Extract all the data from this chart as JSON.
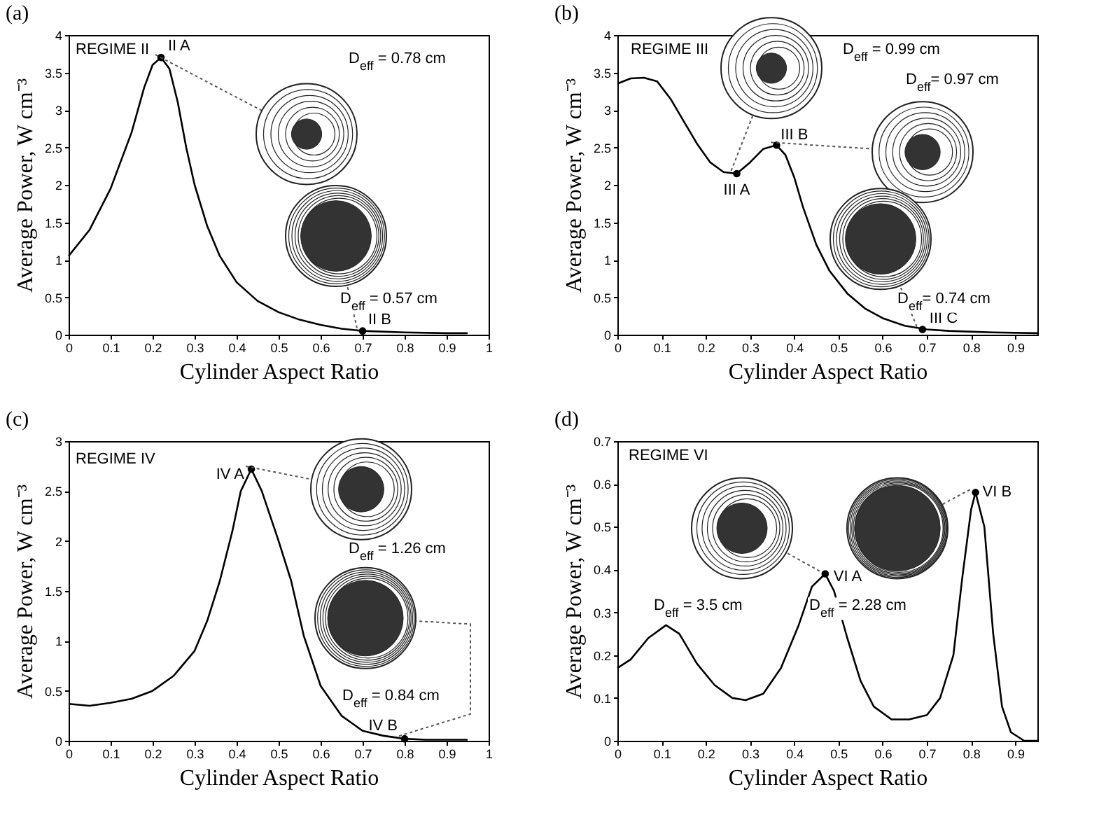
{
  "chart_data": [
    {
      "type": "line",
      "title": "(a)",
      "xlabel": "Cylinder  Aspect  Ratio",
      "ylabel": "Average  Power, W cm⁻³",
      "xlim": [
        0,
        1
      ],
      "xticks": [
        0,
        0.1,
        0.2,
        0.3,
        0.4,
        0.5,
        0.6,
        0.7,
        0.8,
        0.9,
        1
      ],
      "ylim": [
        0,
        4
      ],
      "yticks": [
        0,
        0.5,
        1,
        1.5,
        2,
        2.5,
        3,
        3.5,
        4
      ],
      "series": [
        {
          "color": "#000000",
          "x": [
            0,
            0.05,
            0.1,
            0.15,
            0.18,
            0.2,
            0.22,
            0.24,
            0.26,
            0.28,
            0.3,
            0.33,
            0.36,
            0.4,
            0.45,
            0.5,
            0.55,
            0.6,
            0.65,
            0.7,
            0.8,
            0.9,
            0.95
          ],
          "values": [
            1.05,
            1.4,
            1.95,
            2.7,
            3.3,
            3.6,
            3.7,
            3.55,
            3.1,
            2.5,
            2.0,
            1.45,
            1.05,
            0.7,
            0.45,
            0.3,
            0.2,
            0.13,
            0.08,
            0.05,
            0.03,
            0.02,
            0.02
          ]
        },
        {
          "type": "scatter",
          "marker": "circle",
          "color": "#000000",
          "x": [
            0.22,
            0.7
          ],
          "values": [
            3.7,
            0.05
          ]
        }
      ],
      "annotations": [
        "REGIME II",
        {
          "text": "II A",
          "x": 0.22,
          "y": 3.7
        },
        {
          "text": "II B",
          "x": 0.7,
          "y": 0.05
        },
        "D$_{eff}$ = 0.78 cm",
        "D$_{eff}$ = 0.57 cm"
      ]
    },
    {
      "type": "line",
      "title": "(b)",
      "xlabel": "Cylinder  Aspect  Ratio",
      "ylabel": "Average  Power, W cm⁻³",
      "xlim": [
        0,
        0.95
      ],
      "xticks": [
        0,
        0.1,
        0.2,
        0.3,
        0.4,
        0.5,
        0.6,
        0.7,
        0.8,
        0.9
      ],
      "ylim": [
        0,
        4
      ],
      "yticks": [
        0,
        0.5,
        1,
        1.5,
        2,
        2.5,
        3,
        3.5,
        4
      ],
      "series": [
        {
          "color": "#000000",
          "x": [
            0,
            0.03,
            0.06,
            0.09,
            0.12,
            0.15,
            0.18,
            0.21,
            0.24,
            0.27,
            0.3,
            0.33,
            0.36,
            0.38,
            0.4,
            0.42,
            0.45,
            0.48,
            0.52,
            0.56,
            0.6,
            0.65,
            0.7,
            0.75,
            0.85,
            0.95
          ],
          "values": [
            3.35,
            3.42,
            3.43,
            3.38,
            3.15,
            2.85,
            2.55,
            2.3,
            2.17,
            2.15,
            2.3,
            2.48,
            2.53,
            2.4,
            2.1,
            1.7,
            1.2,
            0.85,
            0.55,
            0.35,
            0.22,
            0.12,
            0.07,
            0.05,
            0.03,
            0.02
          ]
        },
        {
          "type": "scatter",
          "marker": "circle",
          "color": "#000000",
          "x": [
            0.27,
            0.36,
            0.69
          ],
          "values": [
            2.15,
            2.53,
            0.07
          ]
        }
      ],
      "annotations": [
        "REGIME III",
        {
          "text": "III A",
          "x": 0.27,
          "y": 2.15
        },
        {
          "text": "III B",
          "x": 0.36,
          "y": 2.53
        },
        {
          "text": "III C",
          "x": 0.69,
          "y": 0.07
        },
        "D$_{eff}$ = 0.99 cm",
        "D$_{eff}$= 0.97 cm",
        "D$_{eff}$= 0.74 cm"
      ]
    },
    {
      "type": "line",
      "title": "(c)",
      "xlabel": "Cylinder  Aspect  Ratio",
      "ylabel": "Average  Power, W cm⁻³",
      "xlim": [
        0,
        1
      ],
      "xticks": [
        0,
        0.1,
        0.2,
        0.3,
        0.4,
        0.5,
        0.6,
        0.7,
        0.8,
        0.9,
        1
      ],
      "ylim": [
        0,
        3
      ],
      "yticks": [
        0,
        0.5,
        1,
        1.5,
        2,
        2.5,
        3
      ],
      "series": [
        {
          "color": "#000000",
          "x": [
            0,
            0.05,
            0.1,
            0.15,
            0.2,
            0.25,
            0.3,
            0.33,
            0.36,
            0.39,
            0.41,
            0.435,
            0.46,
            0.5,
            0.53,
            0.56,
            0.6,
            0.65,
            0.7,
            0.75,
            0.8,
            0.85,
            0.95
          ],
          "values": [
            0.37,
            0.35,
            0.38,
            0.42,
            0.5,
            0.65,
            0.9,
            1.2,
            1.6,
            2.1,
            2.5,
            2.72,
            2.5,
            2.0,
            1.6,
            1.05,
            0.55,
            0.25,
            0.1,
            0.05,
            0.02,
            0.01,
            0.01
          ]
        },
        {
          "type": "scatter",
          "marker": "circle",
          "color": "#000000",
          "x": [
            0.435,
            0.8
          ],
          "values": [
            2.72,
            0.02
          ]
        }
      ],
      "annotations": [
        "REGIME IV",
        {
          "text": "IV A",
          "x": 0.435,
          "y": 2.72
        },
        {
          "text": "IV B",
          "x": 0.8,
          "y": 0.02
        },
        "D$_{eff}$ = 1.26 cm",
        "D$_{eff}$ = 0.84 cm"
      ]
    },
    {
      "type": "line",
      "title": "(d)",
      "xlabel": "Cylinder  Aspect  Ratio",
      "ylabel": "Average  Power, W cm⁻³",
      "xlim": [
        0,
        0.95
      ],
      "xticks": [
        0,
        0.1,
        0.2,
        0.3,
        0.4,
        0.5,
        0.6,
        0.7,
        0.8,
        0.9
      ],
      "ylim": [
        0,
        0.7
      ],
      "yticks": [
        0,
        0.1,
        0.2,
        0.3,
        0.4,
        0.5,
        0.6,
        0.7
      ],
      "series": [
        {
          "color": "#000000",
          "x": [
            0,
            0.03,
            0.07,
            0.11,
            0.14,
            0.18,
            0.22,
            0.26,
            0.29,
            0.33,
            0.37,
            0.41,
            0.44,
            0.47,
            0.49,
            0.52,
            0.55,
            0.58,
            0.62,
            0.66,
            0.7,
            0.73,
            0.76,
            0.78,
            0.8,
            0.81,
            0.83,
            0.85,
            0.87,
            0.89,
            0.92,
            0.95
          ],
          "values": [
            0.17,
            0.19,
            0.24,
            0.27,
            0.25,
            0.18,
            0.13,
            0.1,
            0.095,
            0.11,
            0.17,
            0.27,
            0.36,
            0.39,
            0.35,
            0.24,
            0.14,
            0.08,
            0.05,
            0.05,
            0.06,
            0.1,
            0.2,
            0.38,
            0.54,
            0.58,
            0.5,
            0.25,
            0.08,
            0.02,
            0.0,
            0.0
          ]
        },
        {
          "type": "scatter",
          "marker": "circle",
          "color": "#000000",
          "x": [
            0.47,
            0.81
          ],
          "values": [
            0.39,
            0.58
          ]
        }
      ],
      "annotations": [
        "REGIME VI",
        {
          "text": "VI A",
          "x": 0.47,
          "y": 0.39
        },
        {
          "text": "VI B",
          "x": 0.81,
          "y": 0.58
        },
        "D$_{eff}$ = 3.5 cm",
        "D$_{eff}$ = 2.28 cm"
      ]
    }
  ]
}
